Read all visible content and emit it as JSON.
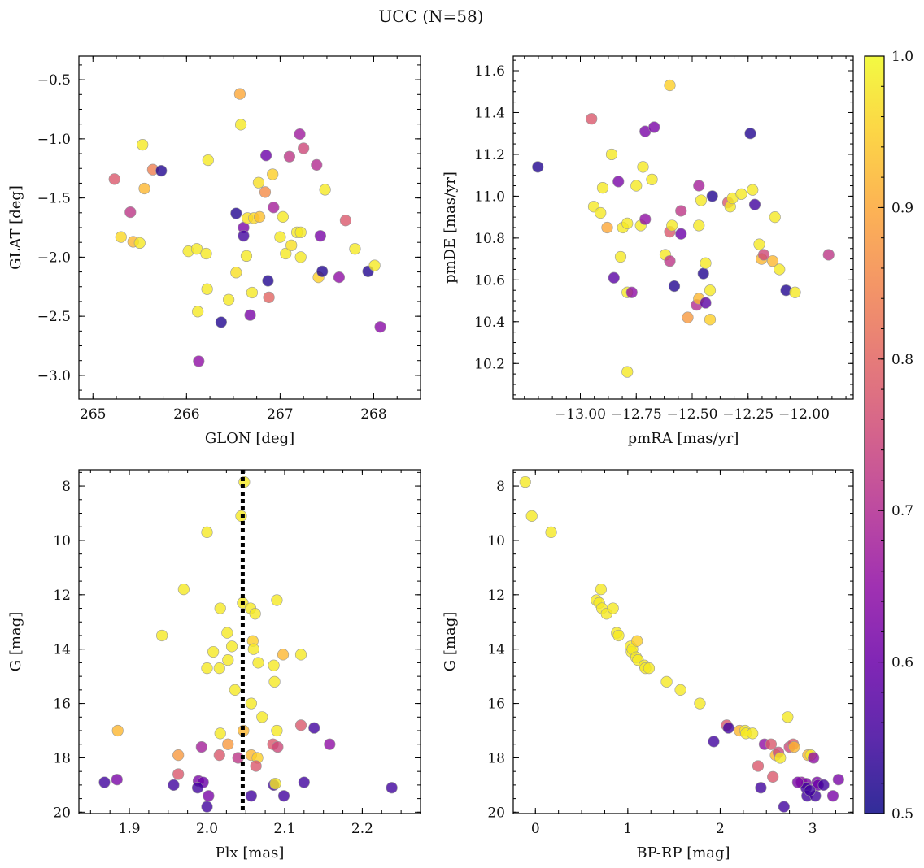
{
  "figure": {
    "title": "UCC (N=58)"
  },
  "colorbar": {
    "min": 0.5,
    "max": 1.0,
    "ticks": [
      "0.5",
      "0.6",
      "0.7",
      "0.8",
      "0.9",
      "1.0"
    ],
    "colormap": "plasma"
  },
  "chart_data": [
    {
      "type": "scatter",
      "xlabel": "GLON [deg]",
      "ylabel": "GLAT [deg]",
      "xlim": [
        264.85,
        268.5
      ],
      "ylim": [
        -3.2,
        -0.3
      ],
      "xticks": [
        265,
        266,
        267,
        268
      ],
      "xticklabels": [
        "265",
        "266",
        "267",
        "268"
      ],
      "yticks": [
        -0.5,
        -1.0,
        -1.5,
        -2.0,
        -2.5,
        -3.0
      ],
      "yticklabels": [
        "−0.5",
        "−1.0",
        "−1.5",
        "−2.0",
        "−2.5",
        "−3.0"
      ],
      "yinvert": false,
      "points": [
        [
          265.23,
          -1.34,
          0.78
        ],
        [
          265.3,
          -1.83,
          0.96
        ],
        [
          265.4,
          -1.62,
          0.72
        ],
        [
          265.43,
          -1.87,
          0.92
        ],
        [
          265.5,
          -1.88,
          0.98
        ],
        [
          265.53,
          -1.05,
          0.98
        ],
        [
          265.55,
          -1.42,
          0.92
        ],
        [
          265.64,
          -1.26,
          0.84
        ],
        [
          265.73,
          -1.27,
          0.52
        ],
        [
          266.02,
          -1.95,
          0.98
        ],
        [
          266.11,
          -1.93,
          0.98
        ],
        [
          266.12,
          -2.46,
          0.98
        ],
        [
          266.13,
          -2.88,
          0.65
        ],
        [
          266.21,
          -1.97,
          0.98
        ],
        [
          266.22,
          -2.27,
          0.98
        ],
        [
          266.23,
          -1.18,
          0.98
        ],
        [
          266.45,
          -2.36,
          0.98
        ],
        [
          266.37,
          -2.55,
          0.52
        ],
        [
          266.53,
          -2.13,
          0.97
        ],
        [
          266.53,
          -1.63,
          0.52
        ],
        [
          266.57,
          -0.62,
          0.9
        ],
        [
          266.58,
          -0.88,
          0.98
        ],
        [
          266.61,
          -1.75,
          0.62
        ],
        [
          266.61,
          -1.82,
          0.55
        ],
        [
          266.64,
          -1.99,
          0.98
        ],
        [
          266.65,
          -1.67,
          0.97
        ],
        [
          266.68,
          -2.49,
          0.62
        ],
        [
          266.72,
          -1.67,
          0.96
        ],
        [
          266.78,
          -1.66,
          0.93
        ],
        [
          266.77,
          -1.37,
          0.97
        ],
        [
          266.84,
          -1.45,
          0.86
        ],
        [
          266.85,
          -1.14,
          0.6
        ],
        [
          266.87,
          -2.2,
          0.52
        ],
        [
          266.88,
          -2.34,
          0.8
        ],
        [
          266.92,
          -1.3,
          0.95
        ],
        [
          266.93,
          -1.58,
          0.68
        ],
        [
          267.0,
          -1.83,
          0.98
        ],
        [
          267.03,
          -1.66,
          0.98
        ],
        [
          267.06,
          -1.97,
          0.98
        ],
        [
          267.1,
          -1.15,
          0.72
        ],
        [
          267.12,
          -1.9,
          0.97
        ],
        [
          267.18,
          -1.79,
          0.98
        ],
        [
          267.21,
          -0.96,
          0.67
        ],
        [
          267.22,
          -1.79,
          0.98
        ],
        [
          267.25,
          -1.08,
          0.75
        ],
        [
          267.39,
          -1.22,
          0.7
        ],
        [
          267.41,
          -2.17,
          0.95
        ],
        [
          267.43,
          -1.82,
          0.62
        ],
        [
          267.45,
          -2.12,
          0.52
        ],
        [
          267.48,
          -1.43,
          0.98
        ],
        [
          267.63,
          -2.17,
          0.65
        ],
        [
          267.7,
          -1.69,
          0.78
        ],
        [
          267.8,
          -1.93,
          0.98
        ],
        [
          267.94,
          -2.12,
          0.52
        ],
        [
          268.01,
          -2.07,
          0.98
        ],
        [
          268.07,
          -2.59,
          0.64
        ],
        [
          267.22,
          -2.0,
          0.98
        ],
        [
          266.7,
          -2.3,
          0.98
        ]
      ]
    },
    {
      "type": "scatter",
      "xlabel": "pmRA [mas/yr]",
      "ylabel": "pmDE [mas/yr]",
      "xlim": [
        -13.3,
        -11.78
      ],
      "ylim": [
        10.03,
        11.67
      ],
      "xticks": [
        -13.0,
        -12.75,
        -12.5,
        -12.25,
        -12.0
      ],
      "xticklabels": [
        "−13.00",
        "−12.75",
        "−12.50",
        "−12.25",
        "−12.00"
      ],
      "yticks": [
        10.2,
        10.4,
        10.6,
        10.8,
        11.0,
        11.2,
        11.4,
        11.6
      ],
      "yticklabels": [
        "10.2",
        "10.4",
        "10.6",
        "10.8",
        "11.0",
        "11.2",
        "11.4",
        "11.6"
      ],
      "yinvert": false,
      "points": [
        [
          -13.19,
          11.14,
          0.52
        ],
        [
          -12.95,
          11.37,
          0.78
        ],
        [
          -12.94,
          10.95,
          0.98
        ],
        [
          -12.91,
          10.92,
          0.98
        ],
        [
          -12.9,
          11.04,
          0.98
        ],
        [
          -12.88,
          10.85,
          0.9
        ],
        [
          -12.86,
          11.2,
          0.98
        ],
        [
          -12.85,
          10.61,
          0.58
        ],
        [
          -12.83,
          11.07,
          0.62
        ],
        [
          -12.82,
          10.71,
          0.98
        ],
        [
          -12.81,
          10.85,
          0.98
        ],
        [
          -12.79,
          10.87,
          0.98
        ],
        [
          -12.79,
          10.54,
          0.98
        ],
        [
          -12.79,
          10.16,
          0.98
        ],
        [
          -12.77,
          10.54,
          0.65
        ],
        [
          -12.75,
          11.05,
          0.98
        ],
        [
          -12.73,
          10.86,
          0.98
        ],
        [
          -12.72,
          11.14,
          0.98
        ],
        [
          -12.71,
          11.31,
          0.62
        ],
        [
          -12.71,
          10.89,
          0.65
        ],
        [
          -12.68,
          11.08,
          0.98
        ],
        [
          -12.67,
          11.33,
          0.62
        ],
        [
          -12.62,
          10.72,
          0.98
        ],
        [
          -12.6,
          10.83,
          0.78
        ],
        [
          -12.6,
          10.69,
          0.72
        ],
        [
          -12.59,
          10.86,
          0.98
        ],
        [
          -12.58,
          10.57,
          0.52
        ],
        [
          -12.6,
          11.53,
          0.95
        ],
        [
          -12.55,
          10.93,
          0.72
        ],
        [
          -12.55,
          10.82,
          0.6
        ],
        [
          -12.52,
          10.42,
          0.88
        ],
        [
          -12.48,
          10.48,
          0.7
        ],
        [
          -12.47,
          10.86,
          0.98
        ],
        [
          -12.47,
          11.05,
          0.68
        ],
        [
          -12.47,
          10.51,
          0.92
        ],
        [
          -12.46,
          10.98,
          0.98
        ],
        [
          -12.45,
          10.63,
          0.52
        ],
        [
          -12.44,
          10.49,
          0.58
        ],
        [
          -12.44,
          10.68,
          0.98
        ],
        [
          -12.42,
          10.41,
          0.95
        ],
        [
          -12.42,
          10.55,
          0.98
        ],
        [
          -12.41,
          11.0,
          0.52
        ],
        [
          -12.34,
          10.97,
          0.78
        ],
        [
          -12.33,
          10.95,
          0.98
        ],
        [
          -12.32,
          10.99,
          0.98
        ],
        [
          -12.28,
          11.01,
          0.98
        ],
        [
          -12.24,
          11.3,
          0.52
        ],
        [
          -12.23,
          11.03,
          0.98
        ],
        [
          -12.22,
          10.96,
          0.55
        ],
        [
          -12.2,
          10.77,
          0.98
        ],
        [
          -12.19,
          10.7,
          0.92
        ],
        [
          -12.18,
          10.72,
          0.75
        ],
        [
          -12.14,
          10.69,
          0.92
        ],
        [
          -12.13,
          10.9,
          0.98
        ],
        [
          -12.11,
          10.65,
          0.98
        ],
        [
          -12.08,
          10.55,
          0.52
        ],
        [
          -12.04,
          10.54,
          0.98
        ],
        [
          -11.89,
          10.72,
          0.72
        ]
      ]
    },
    {
      "type": "scatter",
      "xlabel": "Plx [mas]",
      "ylabel": "G [mag]",
      "xlim": [
        1.835,
        2.275
      ],
      "ylim": [
        20.05,
        7.4
      ],
      "xticks": [
        1.9,
        2.0,
        2.1,
        2.2
      ],
      "xticklabels": [
        "1.9",
        "2.0",
        "2.1",
        "2.2"
      ],
      "yticks": [
        8,
        10,
        12,
        14,
        16,
        18,
        20
      ],
      "yticklabels": [
        "8",
        "10",
        "12",
        "14",
        "16",
        "18",
        "20"
      ],
      "yinvert": true,
      "vline": 2.046,
      "points": [
        [
          2.048,
          7.85,
          0.98
        ],
        [
          2.044,
          9.1,
          0.98
        ],
        [
          2.0,
          9.7,
          0.98
        ],
        [
          1.97,
          11.8,
          0.98
        ],
        [
          2.017,
          12.5,
          0.98
        ],
        [
          2.046,
          12.3,
          0.98
        ],
        [
          2.056,
          12.5,
          0.98
        ],
        [
          2.062,
          12.7,
          0.98
        ],
        [
          2.09,
          12.2,
          0.98
        ],
        [
          1.942,
          13.5,
          0.98
        ],
        [
          2.026,
          13.4,
          0.98
        ],
        [
          2.059,
          13.7,
          0.95
        ],
        [
          2.06,
          14.0,
          0.98
        ],
        [
          2.032,
          13.9,
          0.98
        ],
        [
          2.008,
          14.1,
          0.98
        ],
        [
          2.066,
          14.5,
          0.98
        ],
        [
          2.086,
          14.6,
          0.98
        ],
        [
          2.098,
          14.2,
          0.92
        ],
        [
          2.121,
          14.2,
          0.98
        ],
        [
          2.027,
          14.4,
          0.98
        ],
        [
          2.0,
          14.7,
          0.98
        ],
        [
          2.016,
          14.7,
          0.98
        ],
        [
          2.087,
          15.2,
          0.98
        ],
        [
          2.036,
          15.5,
          0.98
        ],
        [
          2.057,
          16.0,
          0.98
        ],
        [
          2.071,
          16.5,
          0.98
        ],
        [
          1.885,
          17.0,
          0.92
        ],
        [
          2.047,
          17.0,
          0.92
        ],
        [
          2.017,
          17.1,
          0.98
        ],
        [
          2.09,
          17.0,
          0.98
        ],
        [
          2.121,
          16.8,
          0.78
        ],
        [
          2.138,
          16.9,
          0.55
        ],
        [
          2.085,
          17.5,
          0.78
        ],
        [
          2.091,
          17.6,
          0.75
        ],
        [
          2.027,
          17.5,
          0.88
        ],
        [
          1.993,
          17.6,
          0.68
        ],
        [
          1.963,
          17.9,
          0.88
        ],
        [
          2.016,
          17.9,
          0.78
        ],
        [
          2.04,
          18.0,
          0.72
        ],
        [
          2.057,
          17.9,
          0.92
        ],
        [
          2.065,
          18.0,
          0.95
        ],
        [
          2.063,
          18.3,
          0.78
        ],
        [
          2.158,
          17.5,
          0.65
        ],
        [
          1.963,
          18.6,
          0.78
        ],
        [
          1.868,
          18.9,
          0.55
        ],
        [
          1.884,
          18.8,
          0.62
        ],
        [
          1.957,
          19.0,
          0.55
        ],
        [
          1.989,
          18.85,
          0.62
        ],
        [
          1.995,
          18.9,
          0.6
        ],
        [
          1.988,
          19.1,
          0.55
        ],
        [
          2.002,
          19.4,
          0.62
        ],
        [
          2.057,
          19.4,
          0.55
        ],
        [
          2.086,
          19.0,
          0.55
        ],
        [
          2.099,
          19.4,
          0.55
        ],
        [
          2.125,
          18.9,
          0.55
        ],
        [
          2.238,
          19.1,
          0.55
        ],
        [
          2.0,
          19.8,
          0.55
        ],
        [
          2.088,
          18.95,
          0.98
        ]
      ]
    },
    {
      "type": "scatter",
      "xlabel": "BP-RP [mag]",
      "ylabel": "G [mag]",
      "xlim": [
        -0.24,
        3.44
      ],
      "ylim": [
        20.05,
        7.4
      ],
      "xticks": [
        0,
        1,
        2,
        3
      ],
      "xticklabels": [
        "0",
        "1",
        "2",
        "3"
      ],
      "yticks": [
        8,
        10,
        12,
        14,
        16,
        18,
        20
      ],
      "yticklabels": [
        "8",
        "10",
        "12",
        "14",
        "16",
        "18",
        "20"
      ],
      "yinvert": true,
      "points": [
        [
          -0.11,
          7.85,
          0.98
        ],
        [
          -0.04,
          9.1,
          0.98
        ],
        [
          0.17,
          9.7,
          0.98
        ],
        [
          0.66,
          12.2,
          0.98
        ],
        [
          0.69,
          12.3,
          0.98
        ],
        [
          0.71,
          11.8,
          0.98
        ],
        [
          0.72,
          12.5,
          0.98
        ],
        [
          0.77,
          12.7,
          0.98
        ],
        [
          0.84,
          12.5,
          0.98
        ],
        [
          0.88,
          13.4,
          0.98
        ],
        [
          0.9,
          13.5,
          0.98
        ],
        [
          1.03,
          13.9,
          0.98
        ],
        [
          1.04,
          14.1,
          0.98
        ],
        [
          1.05,
          14.0,
          0.98
        ],
        [
          1.09,
          14.3,
          0.98
        ],
        [
          1.1,
          13.7,
          0.95
        ],
        [
          1.11,
          14.4,
          0.98
        ],
        [
          1.18,
          14.6,
          0.98
        ],
        [
          1.19,
          14.7,
          0.98
        ],
        [
          1.23,
          14.7,
          0.98
        ],
        [
          1.42,
          15.2,
          0.98
        ],
        [
          1.57,
          15.5,
          0.98
        ],
        [
          1.78,
          16.0,
          0.98
        ],
        [
          1.93,
          17.4,
          0.55
        ],
        [
          2.07,
          16.8,
          0.78
        ],
        [
          2.09,
          16.9,
          0.55
        ],
        [
          2.21,
          17.0,
          0.92
        ],
        [
          2.27,
          17.0,
          0.98
        ],
        [
          2.28,
          17.1,
          0.98
        ],
        [
          2.35,
          17.1,
          0.98
        ],
        [
          2.41,
          18.3,
          0.78
        ],
        [
          2.44,
          19.1,
          0.55
        ],
        [
          2.48,
          17.5,
          0.65
        ],
        [
          2.55,
          17.5,
          0.78
        ],
        [
          2.57,
          18.7,
          0.78
        ],
        [
          2.6,
          17.9,
          0.92
        ],
        [
          2.63,
          17.8,
          0.75
        ],
        [
          2.65,
          18.0,
          0.98
        ],
        [
          2.69,
          19.8,
          0.55
        ],
        [
          2.73,
          16.5,
          0.98
        ],
        [
          2.75,
          17.6,
          0.75
        ],
        [
          2.79,
          17.5,
          0.78
        ],
        [
          2.8,
          17.6,
          0.92
        ],
        [
          2.88,
          18.9,
          0.65
        ],
        [
          2.93,
          18.95,
          0.62
        ],
        [
          2.93,
          19.1,
          0.55
        ],
        [
          2.94,
          19.4,
          0.55
        ],
        [
          2.95,
          17.9,
          0.92
        ],
        [
          2.98,
          17.9,
          0.98
        ],
        [
          3.01,
          18.0,
          0.65
        ],
        [
          3.03,
          19.4,
          0.55
        ],
        [
          3.05,
          18.9,
          0.62
        ],
        [
          3.06,
          19.0,
          0.6
        ],
        [
          3.12,
          19.0,
          0.55
        ],
        [
          3.22,
          19.4,
          0.62
        ],
        [
          3.28,
          18.8,
          0.62
        ],
        [
          2.97,
          19.2,
          0.55
        ],
        [
          2.84,
          18.9,
          0.62
        ]
      ]
    }
  ]
}
